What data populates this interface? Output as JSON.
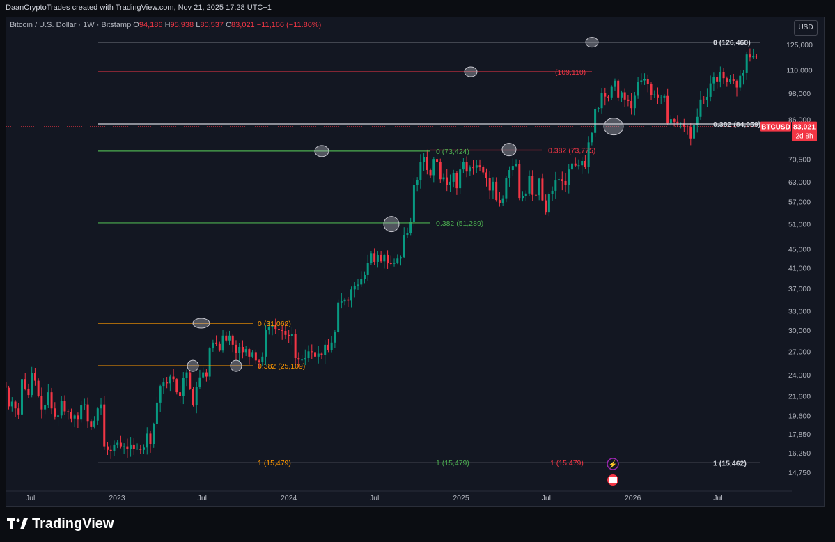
{
  "header": {
    "attribution": "DaanCryptoTrades created with TradingView.com, Nov 21, 2025 17:28 UTC+1"
  },
  "legend": {
    "symbol": "Bitcoin / U.S. Dollar · 1W · Bitstamp",
    "o_label": "O",
    "o_value": "94,186",
    "h_label": "H",
    "h_value": "95,938",
    "l_label": "L",
    "l_value": "80,537",
    "c_label": "C",
    "c_value": "83,021",
    "change": "−11,166 (−11.86%)"
  },
  "currency_label": "USD",
  "footer": {
    "brand": "TradingView"
  },
  "colors": {
    "up": "#089981",
    "down": "#f23645",
    "white_level": "#d1d4dc",
    "red_level": "#f23645",
    "orange_level": "#ff9800",
    "green_level": "#4caf50"
  },
  "chart_data": {
    "type": "candlestick",
    "scale": "log",
    "ylim": [
      14000,
      135000
    ],
    "y_ticks": [
      "125,000",
      "110,000",
      "98,000",
      "86,000",
      "70,500",
      "63,000",
      "57,000",
      "51,000",
      "45,000",
      "41,000",
      "37,000",
      "33,000",
      "30,000",
      "27,000",
      "24,000",
      "21,600",
      "19,600",
      "17,850",
      "16,250",
      "14,750"
    ],
    "y_tick_values": [
      125000,
      110000,
      98000,
      86000,
      70500,
      63000,
      57000,
      51000,
      45000,
      41000,
      37000,
      33000,
      30000,
      27000,
      24000,
      21600,
      19600,
      17850,
      16250,
      14750
    ],
    "x_ticks": [
      {
        "label": "Jul",
        "date": "2022-07-01"
      },
      {
        "label": "2023",
        "date": "2023-01-01"
      },
      {
        "label": "Jul",
        "date": "2023-07-01"
      },
      {
        "label": "2024",
        "date": "2024-01-01"
      },
      {
        "label": "Jul",
        "date": "2024-07-01"
      },
      {
        "label": "2025",
        "date": "2025-01-01"
      },
      {
        "label": "Jul",
        "date": "2025-07-01"
      },
      {
        "label": "2026",
        "date": "2026-01-01"
      },
      {
        "label": "Jul",
        "date": "2026-07-01"
      }
    ],
    "last_price": {
      "symbol": "BTCUSD",
      "value": "83,021",
      "countdown": "2d 8h",
      "price": 83021
    },
    "weekly_closes": [
      [
        22500,
        20500,
        21000,
        20300,
        19700,
        23500,
        22400,
        21700,
        24200,
        23300,
        21600,
        20200,
        20600,
        22000,
        20300,
        19500,
        19600,
        21100,
        20000,
        19900,
        19300,
        19600,
        19200,
        20600,
        20700,
        19000,
        18500,
        19100,
        20300,
        20700,
        16800,
        16500,
        16400,
        16900,
        17100,
        16800,
        16800,
        16600,
        16900,
        16600,
        16600,
        16500,
        16700,
        17900,
        17000,
        18800,
        20900,
        22700,
        23100,
        23000,
        23800,
        23500,
        22000,
        21600,
        23600,
        24300,
        22400,
        20600,
        22600,
        23700,
        24300,
        23800,
        27400,
        28200,
        28000,
        27100,
        29200,
        28500,
        29200,
        27900,
        26800,
        27600,
        26900,
        27300,
        26300,
        26900,
        25800,
        25600,
        26300,
        30000,
        30500,
        30800,
        30200,
        30000,
        29900,
        29300,
        29100,
        29400,
        26100,
        25900,
        25900,
        26100,
        27000,
        26900
      ],
      [
        26300,
        26700,
        26500,
        27900,
        27200,
        28200,
        29700,
        34400,
        34700,
        35000,
        34800,
        36800,
        37500,
        37700,
        38800,
        39500,
        42000,
        44100,
        42200,
        43700,
        42300,
        43700,
        41900,
        41800,
        42000,
        42900,
        43200,
        48300,
        48800,
        51600,
        62000,
        63600,
        69500,
        71300,
        66800,
        65100,
        70600,
        69600,
        63800,
        64400,
        62000,
        63000,
        65800,
        61000,
        67000,
        69600,
        66300,
        67700,
        67600,
        68400,
        67800,
        66000,
        64200,
        60300,
        63000,
        57500,
        56700,
        58000,
        64300,
        66800,
        68200,
        68700,
        58100,
        58700,
        59400,
        64900,
        59000,
        58900,
        64000,
        57400,
        54000,
        59200,
        60200,
        63400,
        63800,
        63200,
        62000,
        67000,
        69000,
        68300,
        68400,
        69900,
        67800,
        76700,
        80400,
        90500,
        91000,
        98200,
        96400,
        96000,
        101200,
        104400,
        96000,
        98500,
        95000,
        94300,
        91000,
        96800,
        103900,
        104500,
        105200,
        102600,
        97100,
        97400,
        96000,
        96000,
        96700,
        84300,
        86100,
        85000,
        84300,
        84300,
        83000,
        82600,
        78200,
        83600,
        87100,
        95000,
        94700,
        96300,
        103000,
        106500,
        104000,
        109000,
        105700,
        103600,
        105300,
        104300,
        100900,
        107000,
        108400,
        119000,
        117300,
        117900,
        117200,
        113700,
        114200,
        119200,
        117600,
        113500,
        108200,
        108300,
        111300,
        110600,
        115700,
        115400,
        112300,
        122300,
        121800,
        114600,
        110400,
        108600,
        115200,
        106400,
        103000,
        94200,
        83021
      ]
    ],
    "levels": [
      {
        "label": "0 (126,460)",
        "value": 126460,
        "color": "white"
      },
      {
        "label": "0.382 (84,059)",
        "value": 84059,
        "color": "white"
      },
      {
        "label": "1 (15,462)",
        "value": 15462,
        "color": "white"
      },
      {
        "label": "(109,110)",
        "value": 109110,
        "color": "red"
      },
      {
        "label": "0.382 (73,775)",
        "value": 73775,
        "color": "red"
      },
      {
        "label": "1 (15,479)",
        "value": 15479,
        "color": "red"
      },
      {
        "label": "0 (73,424)",
        "value": 73424,
        "color": "green"
      },
      {
        "label": "0.382 (51,289)",
        "value": 51289,
        "color": "green"
      },
      {
        "label": "1 (15,479)",
        "value": 15479,
        "color": "green"
      },
      {
        "label": "0 (31,062)",
        "value": 31062,
        "color": "orange"
      },
      {
        "label": "0.382 (25,109)",
        "value": 25109,
        "color": "orange"
      },
      {
        "label": "1 (15,479)",
        "value": 15479,
        "color": "orange"
      }
    ]
  }
}
